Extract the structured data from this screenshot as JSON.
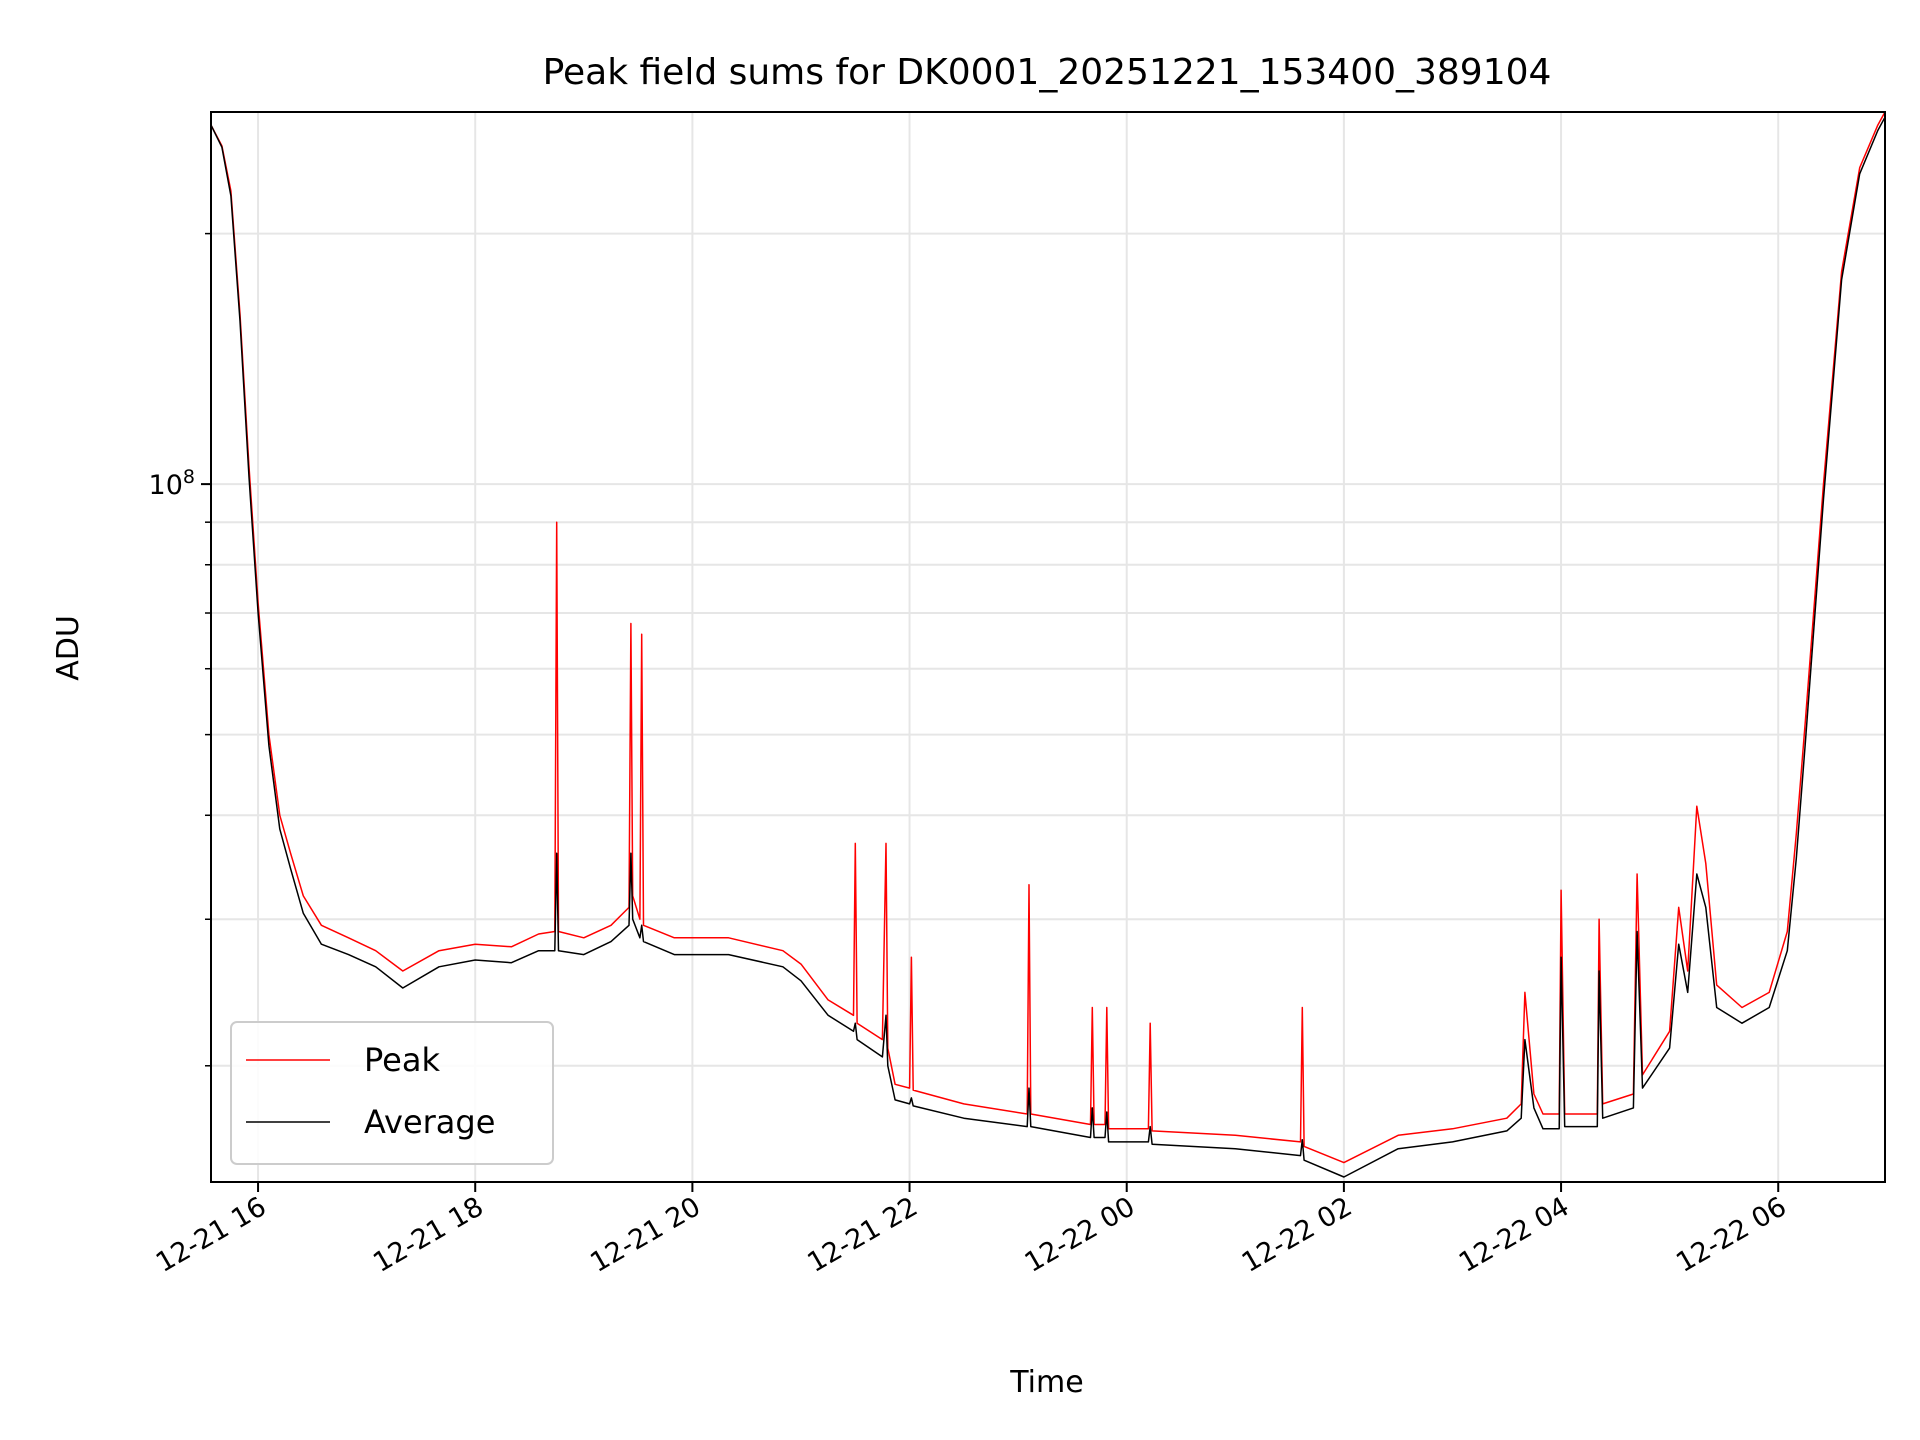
{
  "chart_data": {
    "type": "line",
    "title": "Peak field sums for DK0001_20251221_153400_389104",
    "xlabel": "Time",
    "ylabel": "ADU",
    "y_scale": "log",
    "grid": true,
    "legend_position": "lower-left",
    "x_range": [
      "2025-12-21 15:34",
      "2025-12-22 06:59"
    ],
    "y_range": [
      14500000,
      280000000
    ],
    "x_ticks": [
      {
        "t": "2025-12-21 16:00",
        "label": "12-21 16"
      },
      {
        "t": "2025-12-21 18:00",
        "label": "12-21 18"
      },
      {
        "t": "2025-12-21 20:00",
        "label": "12-21 20"
      },
      {
        "t": "2025-12-21 22:00",
        "label": "12-21 22"
      },
      {
        "t": "2025-12-22 00:00",
        "label": "12-22 00"
      },
      {
        "t": "2025-12-22 02:00",
        "label": "12-22 02"
      },
      {
        "t": "2025-12-22 04:00",
        "label": "12-22 04"
      },
      {
        "t": "2025-12-22 06:00",
        "label": "12-22 06"
      }
    ],
    "y_major_ticks": [
      {
        "value": 100000000,
        "base": "10",
        "exp": "8"
      }
    ],
    "y_minor_ticks": [
      20000000,
      30000000,
      40000000,
      50000000,
      60000000,
      70000000,
      80000000,
      90000000,
      200000000
    ],
    "series": [
      {
        "name": "Peak",
        "color": "#ff0000",
        "points": [
          [
            "2025-12-21 15:34",
            270000000
          ],
          [
            "2025-12-21 15:40",
            255000000
          ],
          [
            "2025-12-21 15:45",
            225000000
          ],
          [
            "2025-12-21 15:50",
            160000000
          ],
          [
            "2025-12-21 15:55",
            105000000
          ],
          [
            "2025-12-21 16:00",
            72000000
          ],
          [
            "2025-12-21 16:06",
            50000000
          ],
          [
            "2025-12-21 16:12",
            40000000
          ],
          [
            "2025-12-21 16:18",
            36000000
          ],
          [
            "2025-12-21 16:25",
            32000000
          ],
          [
            "2025-12-21 16:35",
            29500000
          ],
          [
            "2025-12-21 16:50",
            28500000
          ],
          [
            "2025-12-21 17:05",
            27500000
          ],
          [
            "2025-12-21 17:20",
            26000000
          ],
          [
            "2025-12-21 17:40",
            27500000
          ],
          [
            "2025-12-21 18:00",
            28000000
          ],
          [
            "2025-12-21 18:20",
            27800000
          ],
          [
            "2025-12-21 18:35",
            28800000
          ],
          [
            "2025-12-21 18:44",
            29000000
          ],
          [
            "2025-12-21 18:45",
            90000000
          ],
          [
            "2025-12-21 18:46",
            29000000
          ],
          [
            "2025-12-21 19:00",
            28500000
          ],
          [
            "2025-12-21 19:15",
            29500000
          ],
          [
            "2025-12-21 19:25",
            31000000
          ],
          [
            "2025-12-21 19:26",
            68000000
          ],
          [
            "2025-12-21 19:27",
            32000000
          ],
          [
            "2025-12-21 19:31",
            30000000
          ],
          [
            "2025-12-21 19:32",
            66000000
          ],
          [
            "2025-12-21 19:33",
            29500000
          ],
          [
            "2025-12-21 19:50",
            28500000
          ],
          [
            "2025-12-21 20:20",
            28500000
          ],
          [
            "2025-12-21 20:50",
            27500000
          ],
          [
            "2025-12-21 21:00",
            26500000
          ],
          [
            "2025-12-21 21:15",
            24000000
          ],
          [
            "2025-12-21 21:29",
            23000000
          ],
          [
            "2025-12-21 21:30",
            37000000
          ],
          [
            "2025-12-21 21:31",
            22500000
          ],
          [
            "2025-12-21 21:45",
            21500000
          ],
          [
            "2025-12-21 21:47",
            37000000
          ],
          [
            "2025-12-21 21:48",
            21000000
          ],
          [
            "2025-12-21 21:52",
            19000000
          ],
          [
            "2025-12-21 22:00",
            18800000
          ],
          [
            "2025-12-21 22:01",
            27000000
          ],
          [
            "2025-12-21 22:02",
            18700000
          ],
          [
            "2025-12-21 22:30",
            18000000
          ],
          [
            "2025-12-21 23:05",
            17500000
          ],
          [
            "2025-12-21 23:06",
            33000000
          ],
          [
            "2025-12-21 23:07",
            17500000
          ],
          [
            "2025-12-21 23:40",
            17000000
          ],
          [
            "2025-12-21 23:41",
            23500000
          ],
          [
            "2025-12-21 23:42",
            17000000
          ],
          [
            "2025-12-21 23:48",
            17000000
          ],
          [
            "2025-12-21 23:49",
            23500000
          ],
          [
            "2025-12-21 23:50",
            16800000
          ],
          [
            "2025-12-22 00:12",
            16800000
          ],
          [
            "2025-12-22 00:13",
            22500000
          ],
          [
            "2025-12-22 00:14",
            16700000
          ],
          [
            "2025-12-22 01:00",
            16500000
          ],
          [
            "2025-12-22 01:36",
            16200000
          ],
          [
            "2025-12-22 01:37",
            23500000
          ],
          [
            "2025-12-22 01:38",
            16000000
          ],
          [
            "2025-12-22 02:00",
            15300000
          ],
          [
            "2025-12-22 02:30",
            16500000
          ],
          [
            "2025-12-22 03:00",
            16800000
          ],
          [
            "2025-12-22 03:30",
            17300000
          ],
          [
            "2025-12-22 03:38",
            18000000
          ],
          [
            "2025-12-22 03:40",
            24500000
          ],
          [
            "2025-12-22 03:45",
            18500000
          ],
          [
            "2025-12-22 03:50",
            17500000
          ],
          [
            "2025-12-22 03:59",
            17500000
          ],
          [
            "2025-12-22 04:00",
            32500000
          ],
          [
            "2025-12-22 04:02",
            17500000
          ],
          [
            "2025-12-22 04:20",
            17500000
          ],
          [
            "2025-12-22 04:21",
            30000000
          ],
          [
            "2025-12-22 04:23",
            18000000
          ],
          [
            "2025-12-22 04:40",
            18500000
          ],
          [
            "2025-12-22 04:42",
            34000000
          ],
          [
            "2025-12-22 04:45",
            19500000
          ],
          [
            "2025-12-22 05:00",
            22000000
          ],
          [
            "2025-12-22 05:05",
            31000000
          ],
          [
            "2025-12-22 05:10",
            26000000
          ],
          [
            "2025-12-22 05:15",
            41000000
          ],
          [
            "2025-12-22 05:20",
            35000000
          ],
          [
            "2025-12-22 05:26",
            25000000
          ],
          [
            "2025-12-22 05:40",
            23500000
          ],
          [
            "2025-12-22 05:55",
            24500000
          ],
          [
            "2025-12-22 06:05",
            29000000
          ],
          [
            "2025-12-22 06:10",
            38000000
          ],
          [
            "2025-12-22 06:15",
            52000000
          ],
          [
            "2025-12-22 06:25",
            100000000
          ],
          [
            "2025-12-22 06:35",
            180000000
          ],
          [
            "2025-12-22 06:45",
            240000000
          ],
          [
            "2025-12-22 06:55",
            270000000
          ],
          [
            "2025-12-22 06:59",
            280000000
          ]
        ]
      },
      {
        "name": "Average",
        "color": "#000000",
        "points": [
          [
            "2025-12-21 15:34",
            270000000
          ],
          [
            "2025-12-21 15:40",
            254000000
          ],
          [
            "2025-12-21 15:45",
            222000000
          ],
          [
            "2025-12-21 15:50",
            157000000
          ],
          [
            "2025-12-21 15:55",
            102000000
          ],
          [
            "2025-12-21 16:00",
            70000000
          ],
          [
            "2025-12-21 16:06",
            48500000
          ],
          [
            "2025-12-21 16:12",
            38500000
          ],
          [
            "2025-12-21 16:18",
            34500000
          ],
          [
            "2025-12-21 16:25",
            30500000
          ],
          [
            "2025-12-21 16:35",
            28000000
          ],
          [
            "2025-12-21 16:50",
            27200000
          ],
          [
            "2025-12-21 17:05",
            26300000
          ],
          [
            "2025-12-21 17:20",
            24800000
          ],
          [
            "2025-12-21 17:40",
            26300000
          ],
          [
            "2025-12-21 18:00",
            26800000
          ],
          [
            "2025-12-21 18:20",
            26600000
          ],
          [
            "2025-12-21 18:35",
            27500000
          ],
          [
            "2025-12-21 18:44",
            27500000
          ],
          [
            "2025-12-21 18:45",
            36000000
          ],
          [
            "2025-12-21 18:46",
            27500000
          ],
          [
            "2025-12-21 19:00",
            27200000
          ],
          [
            "2025-12-21 19:15",
            28200000
          ],
          [
            "2025-12-21 19:25",
            29500000
          ],
          [
            "2025-12-21 19:26",
            36000000
          ],
          [
            "2025-12-21 19:27",
            30000000
          ],
          [
            "2025-12-21 19:31",
            28500000
          ],
          [
            "2025-12-21 19:32",
            29500000
          ],
          [
            "2025-12-21 19:33",
            28200000
          ],
          [
            "2025-12-21 19:50",
            27200000
          ],
          [
            "2025-12-21 20:20",
            27200000
          ],
          [
            "2025-12-21 20:50",
            26300000
          ],
          [
            "2025-12-21 21:00",
            25300000
          ],
          [
            "2025-12-21 21:15",
            23000000
          ],
          [
            "2025-12-21 21:29",
            22000000
          ],
          [
            "2025-12-21 21:30",
            22500000
          ],
          [
            "2025-12-21 21:31",
            21500000
          ],
          [
            "2025-12-21 21:45",
            20500000
          ],
          [
            "2025-12-21 21:47",
            23000000
          ],
          [
            "2025-12-21 21:48",
            20000000
          ],
          [
            "2025-12-21 21:52",
            18200000
          ],
          [
            "2025-12-21 22:00",
            18000000
          ],
          [
            "2025-12-21 22:01",
            18300000
          ],
          [
            "2025-12-21 22:02",
            17900000
          ],
          [
            "2025-12-21 22:30",
            17300000
          ],
          [
            "2025-12-21 23:05",
            16900000
          ],
          [
            "2025-12-21 23:06",
            18800000
          ],
          [
            "2025-12-21 23:07",
            16900000
          ],
          [
            "2025-12-21 23:40",
            16400000
          ],
          [
            "2025-12-21 23:41",
            17800000
          ],
          [
            "2025-12-21 23:42",
            16400000
          ],
          [
            "2025-12-21 23:48",
            16400000
          ],
          [
            "2025-12-21 23:49",
            17600000
          ],
          [
            "2025-12-21 23:50",
            16200000
          ],
          [
            "2025-12-22 00:12",
            16200000
          ],
          [
            "2025-12-22 00:13",
            16900000
          ],
          [
            "2025-12-22 00:14",
            16100000
          ],
          [
            "2025-12-22 01:00",
            15900000
          ],
          [
            "2025-12-22 01:36",
            15600000
          ],
          [
            "2025-12-22 01:37",
            16300000
          ],
          [
            "2025-12-22 01:38",
            15400000
          ],
          [
            "2025-12-22 02:00",
            14700000
          ],
          [
            "2025-12-22 02:30",
            15900000
          ],
          [
            "2025-12-22 03:00",
            16200000
          ],
          [
            "2025-12-22 03:30",
            16700000
          ],
          [
            "2025-12-22 03:38",
            17300000
          ],
          [
            "2025-12-22 03:40",
            21500000
          ],
          [
            "2025-12-22 03:45",
            17800000
          ],
          [
            "2025-12-22 03:50",
            16800000
          ],
          [
            "2025-12-22 03:59",
            16800000
          ],
          [
            "2025-12-22 04:00",
            27000000
          ],
          [
            "2025-12-22 04:02",
            16900000
          ],
          [
            "2025-12-22 04:20",
            16900000
          ],
          [
            "2025-12-22 04:21",
            26000000
          ],
          [
            "2025-12-22 04:23",
            17300000
          ],
          [
            "2025-12-22 04:40",
            17800000
          ],
          [
            "2025-12-22 04:42",
            29000000
          ],
          [
            "2025-12-22 04:45",
            18800000
          ],
          [
            "2025-12-22 05:00",
            21000000
          ],
          [
            "2025-12-22 05:05",
            28000000
          ],
          [
            "2025-12-22 05:10",
            24500000
          ],
          [
            "2025-12-22 05:15",
            34000000
          ],
          [
            "2025-12-22 05:20",
            31000000
          ],
          [
            "2025-12-22 05:26",
            23500000
          ],
          [
            "2025-12-22 05:40",
            22500000
          ],
          [
            "2025-12-22 05:55",
            23500000
          ],
          [
            "2025-12-22 06:05",
            27500000
          ],
          [
            "2025-12-22 06:10",
            35500000
          ],
          [
            "2025-12-22 06:15",
            49000000
          ],
          [
            "2025-12-22 06:25",
            96000000
          ],
          [
            "2025-12-22 06:35",
            176000000
          ],
          [
            "2025-12-22 06:45",
            236000000
          ],
          [
            "2025-12-22 06:55",
            266000000
          ],
          [
            "2025-12-22 06:59",
            276000000
          ]
        ]
      }
    ]
  }
}
